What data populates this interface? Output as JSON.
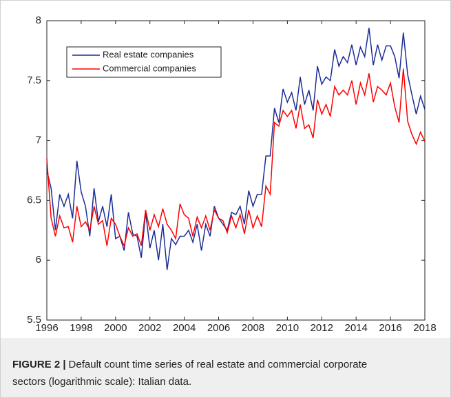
{
  "chart_data": {
    "type": "line",
    "x": [
      1996,
      1996.25,
      1996.5,
      1996.75,
      1997,
      1997.25,
      1997.5,
      1997.75,
      1998,
      1998.25,
      1998.5,
      1998.75,
      1999,
      1999.25,
      1999.5,
      1999.75,
      2000,
      2000.25,
      2000.5,
      2000.75,
      2001,
      2001.25,
      2001.5,
      2001.75,
      2002,
      2002.25,
      2002.5,
      2002.75,
      2003,
      2003.25,
      2003.5,
      2003.75,
      2004,
      2004.25,
      2004.5,
      2004.75,
      2005,
      2005.25,
      2005.5,
      2005.75,
      2006,
      2006.25,
      2006.5,
      2006.75,
      2007,
      2007.25,
      2007.5,
      2007.75,
      2008,
      2008.25,
      2008.5,
      2008.75,
      2009,
      2009.25,
      2009.5,
      2009.75,
      2010,
      2010.25,
      2010.5,
      2010.75,
      2011,
      2011.25,
      2011.5,
      2011.75,
      2012,
      2012.25,
      2012.5,
      2012.75,
      2013,
      2013.25,
      2013.5,
      2013.75,
      2014,
      2014.25,
      2014.5,
      2014.75,
      2015,
      2015.25,
      2015.5,
      2015.75,
      2016,
      2016.25,
      2016.5,
      2016.75,
      2017,
      2017.25,
      2017.5,
      2017.75,
      2018
    ],
    "series": [
      {
        "name": "Real estate companies",
        "color": "#1c2c96",
        "values": [
          6.75,
          6.6,
          6.25,
          6.55,
          6.45,
          6.55,
          6.35,
          6.83,
          6.57,
          6.45,
          6.2,
          6.6,
          6.32,
          6.45,
          6.28,
          6.55,
          6.18,
          6.2,
          6.08,
          6.4,
          6.22,
          6.2,
          6.02,
          6.4,
          6.1,
          6.25,
          6.0,
          6.3,
          5.92,
          6.18,
          6.13,
          6.2,
          6.2,
          6.25,
          6.15,
          6.3,
          6.08,
          6.3,
          6.2,
          6.45,
          6.35,
          6.3,
          6.25,
          6.4,
          6.38,
          6.45,
          6.3,
          6.58,
          6.45,
          6.55,
          6.55,
          6.87,
          6.87,
          7.27,
          7.15,
          7.43,
          7.32,
          7.4,
          7.25,
          7.53,
          7.3,
          7.42,
          7.25,
          7.62,
          7.47,
          7.53,
          7.5,
          7.76,
          7.62,
          7.7,
          7.65,
          7.8,
          7.63,
          7.78,
          7.7,
          7.94,
          7.63,
          7.8,
          7.67,
          7.79,
          7.79,
          7.7,
          7.52,
          7.9,
          7.55,
          7.38,
          7.22,
          7.37,
          7.26
        ]
      },
      {
        "name": "Commercial companies",
        "color": "#ff0000",
        "values": [
          6.85,
          6.35,
          6.2,
          6.37,
          6.27,
          6.28,
          6.15,
          6.45,
          6.28,
          6.32,
          6.25,
          6.45,
          6.3,
          6.33,
          6.12,
          6.35,
          6.3,
          6.2,
          6.12,
          6.27,
          6.2,
          6.22,
          6.12,
          6.42,
          6.25,
          6.38,
          6.28,
          6.43,
          6.3,
          6.25,
          6.18,
          6.47,
          6.38,
          6.35,
          6.2,
          6.36,
          6.27,
          6.37,
          6.25,
          6.42,
          6.35,
          6.33,
          6.23,
          6.37,
          6.27,
          6.38,
          6.22,
          6.42,
          6.27,
          6.37,
          6.28,
          6.62,
          6.55,
          7.15,
          7.12,
          7.25,
          7.2,
          7.25,
          7.1,
          7.3,
          7.1,
          7.13,
          7.02,
          7.34,
          7.22,
          7.3,
          7.2,
          7.45,
          7.38,
          7.42,
          7.38,
          7.5,
          7.3,
          7.48,
          7.38,
          7.56,
          7.32,
          7.45,
          7.42,
          7.38,
          7.48,
          7.28,
          7.15,
          7.6,
          7.16,
          7.05,
          6.97,
          7.07,
          6.99
        ]
      }
    ],
    "xlim": [
      1996,
      2018
    ],
    "xticks": [
      1996,
      1998,
      2000,
      2002,
      2004,
      2006,
      2008,
      2010,
      2012,
      2014,
      2016,
      2018
    ],
    "ylim": [
      5.5,
      8
    ],
    "yticks": [
      5.5,
      6,
      6.5,
      7,
      7.5,
      8
    ],
    "legend": "upper left"
  },
  "caption": {
    "label": "FIGURE 2 |",
    "lines": [
      "Default count time series of real estate and commercial corporate",
      "sectors (logarithmic scale): Italian data."
    ]
  }
}
